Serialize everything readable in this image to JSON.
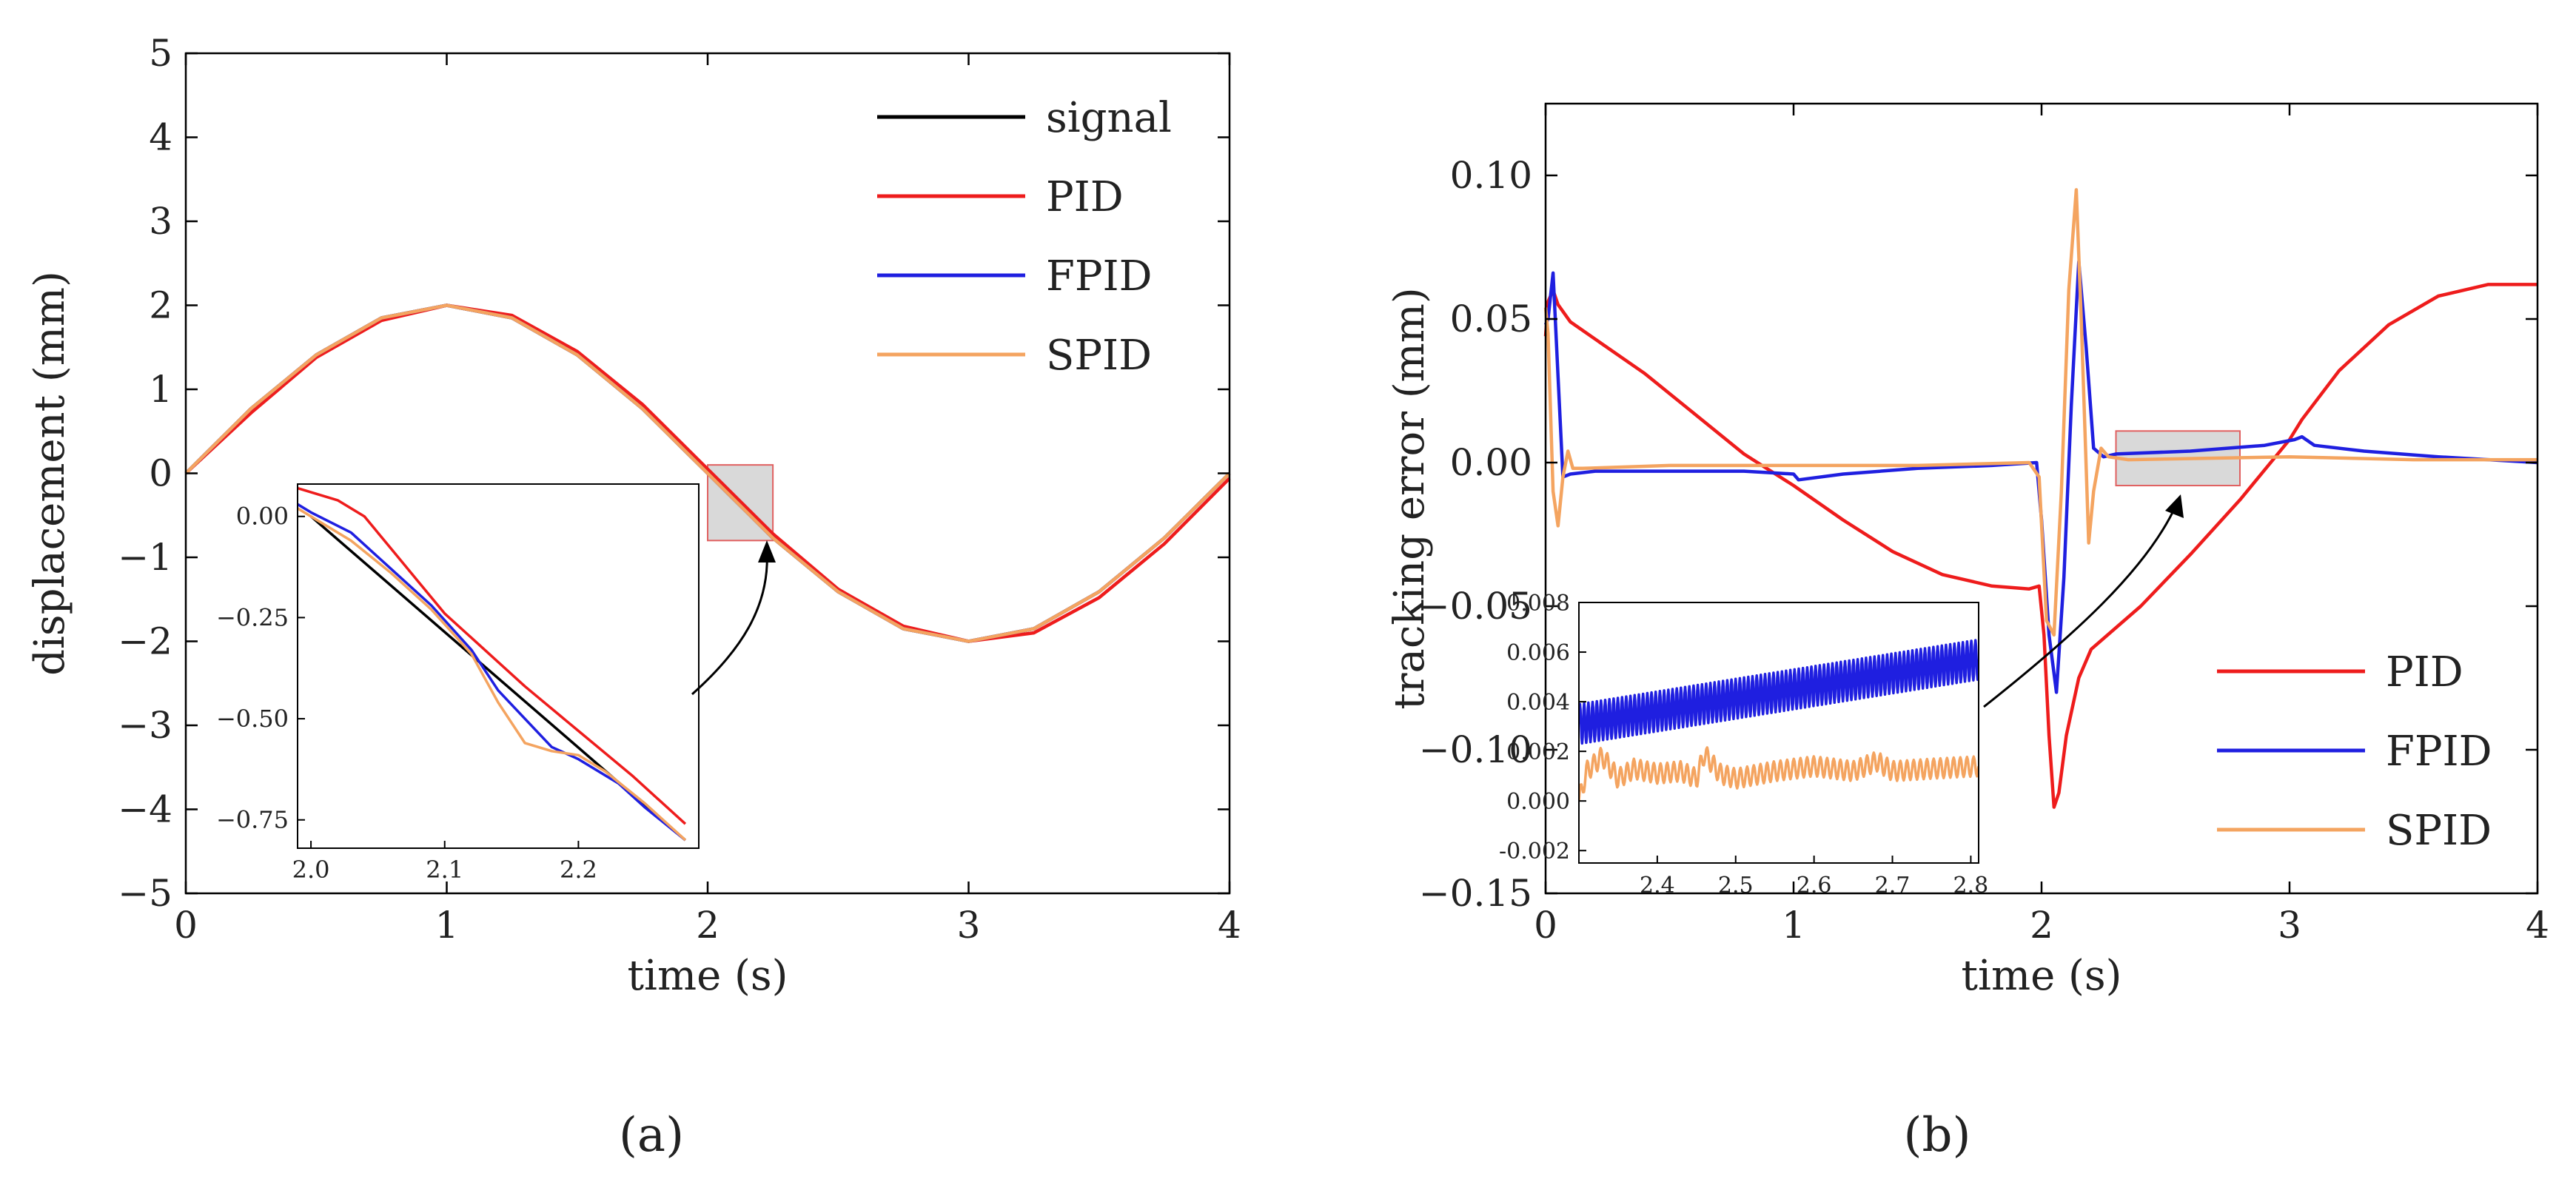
{
  "panels": {
    "a": {
      "label": "(a)"
    },
    "b": {
      "label": "(b)"
    }
  },
  "colors": {
    "signal": "#000000",
    "PID": "#ee1c1c",
    "FPID": "#1f1fe0",
    "SPID": "#f4a460",
    "zoom_box_fill": "#d9d9d9",
    "zoom_box_stroke": "#e06060"
  },
  "chart_data": [
    {
      "type": "line",
      "panel": "a",
      "xlabel": "time (s)",
      "ylabel": "displacement (mm)",
      "xlim": [
        0,
        4
      ],
      "ylim": [
        -5,
        5
      ],
      "xticks": [
        0,
        1,
        2,
        3,
        4
      ],
      "yticks": [
        5,
        4,
        3,
        2,
        1,
        0,
        -1,
        -2,
        -3,
        -4,
        -5
      ],
      "ytick_labels": [
        "5",
        "4",
        "3",
        "2",
        "1",
        "0",
        "−1",
        "−2",
        "−3",
        "−4",
        "−5"
      ],
      "legend": {
        "position": "top-right",
        "entries": [
          "signal",
          "PID",
          "FPID",
          "SPID"
        ]
      },
      "series": [
        {
          "name": "signal",
          "x": [
            0,
            0.25,
            0.5,
            0.75,
            1,
            1.25,
            1.5,
            1.75,
            2,
            2.25,
            2.5,
            2.75,
            3,
            3.25,
            3.5,
            3.75,
            4
          ],
          "y": [
            0,
            0.77,
            1.41,
            1.85,
            2,
            1.85,
            1.41,
            0.77,
            0,
            -0.77,
            -1.41,
            -1.85,
            -2,
            -1.85,
            -1.41,
            -0.77,
            0
          ]
        },
        {
          "name": "PID",
          "x": [
            0,
            0.25,
            0.5,
            0.75,
            1,
            1.25,
            1.5,
            1.75,
            2,
            2.25,
            2.5,
            2.75,
            3,
            3.25,
            3.5,
            3.75,
            4
          ],
          "y": [
            0,
            0.72,
            1.38,
            1.82,
            2,
            1.88,
            1.45,
            0.82,
            0.05,
            -0.72,
            -1.38,
            -1.82,
            -2,
            -1.9,
            -1.48,
            -0.84,
            -0.06
          ]
        },
        {
          "name": "FPID",
          "x": [
            0,
            0.25,
            0.5,
            0.75,
            1,
            1.25,
            1.5,
            1.75,
            2,
            2.25,
            2.5,
            2.75,
            3,
            3.25,
            3.5,
            3.75,
            4
          ],
          "y": [
            0,
            0.77,
            1.41,
            1.85,
            2,
            1.85,
            1.41,
            0.77,
            0,
            -0.77,
            -1.41,
            -1.85,
            -2,
            -1.85,
            -1.41,
            -0.77,
            0
          ]
        },
        {
          "name": "SPID",
          "x": [
            0,
            0.25,
            0.5,
            0.75,
            1,
            1.25,
            1.5,
            1.75,
            2,
            2.25,
            2.5,
            2.75,
            3,
            3.25,
            3.5,
            3.75,
            4
          ],
          "y": [
            0,
            0.77,
            1.41,
            1.85,
            2,
            1.85,
            1.41,
            0.77,
            0,
            -0.77,
            -1.41,
            -1.85,
            -2,
            -1.85,
            -1.41,
            -0.77,
            0
          ]
        }
      ],
      "zoom_region": {
        "xlim": [
          2.0,
          2.25
        ],
        "ylim": [
          -0.8,
          0.1
        ]
      },
      "inset": {
        "xlim": [
          1.99,
          2.29
        ],
        "ylim": [
          -0.82,
          0.08
        ],
        "xticks": [
          2.0,
          2.1,
          2.2
        ],
        "xtick_labels": [
          "2.0",
          "2.1",
          "2.2"
        ],
        "yticks": [
          0,
          -0.25,
          -0.5,
          -0.75
        ],
        "ytick_labels": [
          "0.00",
          "−0.25",
          "−0.50",
          "−0.75"
        ],
        "series": [
          {
            "name": "signal",
            "x": [
              2.0,
              2.28
            ],
            "y": [
              0,
              -0.8
            ]
          },
          {
            "name": "PID",
            "x": [
              1.99,
              2.02,
              2.04,
              2.06,
              2.08,
              2.1,
              2.13,
              2.16,
              2.2,
              2.24,
              2.28
            ],
            "y": [
              0.07,
              0.04,
              0.0,
              -0.08,
              -0.16,
              -0.24,
              -0.33,
              -0.42,
              -0.53,
              -0.64,
              -0.76
            ]
          },
          {
            "name": "FPID",
            "x": [
              1.99,
              2.0,
              2.03,
              2.06,
              2.09,
              2.12,
              2.14,
              2.16,
              2.18,
              2.2,
              2.23,
              2.25,
              2.28
            ],
            "y": [
              0.03,
              0.01,
              -0.04,
              -0.13,
              -0.22,
              -0.33,
              -0.43,
              -0.5,
              -0.57,
              -0.6,
              -0.66,
              -0.72,
              -0.8
            ]
          },
          {
            "name": "SPID",
            "x": [
              1.99,
              2.0,
              2.03,
              2.06,
              2.09,
              2.12,
              2.14,
              2.16,
              2.18,
              2.2,
              2.22,
              2.25,
              2.28
            ],
            "y": [
              0.02,
              0.0,
              -0.06,
              -0.14,
              -0.23,
              -0.34,
              -0.46,
              -0.56,
              -0.58,
              -0.59,
              -0.63,
              -0.71,
              -0.8
            ]
          }
        ]
      }
    },
    {
      "type": "line",
      "panel": "b",
      "xlabel": "time (s)",
      "ylabel": "tracking error (mm)",
      "xlim": [
        0,
        4
      ],
      "ylim": [
        -0.15,
        0.125
      ],
      "xticks": [
        0,
        1,
        2,
        3,
        4
      ],
      "yticks": [
        0.1,
        0.05,
        0.0,
        -0.05,
        -0.1,
        -0.15
      ],
      "ytick_labels": [
        "0.10",
        "0.05",
        "0.00",
        "−0.05",
        "−0.10",
        "−0.15"
      ],
      "legend": {
        "position": "bottom-right",
        "entries": [
          "PID",
          "FPID",
          "SPID"
        ]
      },
      "series": [
        {
          "name": "PID",
          "x": [
            0,
            0.01,
            0.03,
            0.05,
            0.1,
            0.2,
            0.4,
            0.6,
            0.8,
            1.0,
            1.2,
            1.4,
            1.6,
            1.8,
            1.95,
            1.99,
            2.01,
            2.03,
            2.05,
            2.07,
            2.1,
            2.15,
            2.2,
            2.4,
            2.6,
            2.8,
            3.0,
            3.05,
            3.2,
            3.4,
            3.6,
            3.8,
            3.9,
            4.0
          ],
          "y": [
            0.044,
            0.056,
            0.06,
            0.055,
            0.049,
            0.043,
            0.031,
            0.017,
            0.003,
            -0.008,
            -0.02,
            -0.031,
            -0.039,
            -0.043,
            -0.044,
            -0.043,
            -0.06,
            -0.095,
            -0.12,
            -0.115,
            -0.095,
            -0.075,
            -0.065,
            -0.05,
            -0.032,
            -0.013,
            0.008,
            0.015,
            0.032,
            0.048,
            0.058,
            0.062,
            0.062,
            0.062
          ]
        },
        {
          "name": "FPID",
          "x": [
            0,
            0.01,
            0.03,
            0.05,
            0.07,
            0.1,
            0.2,
            0.5,
            0.8,
            1.0,
            1.02,
            1.2,
            1.5,
            1.8,
            1.98,
            2.0,
            2.03,
            2.06,
            2.09,
            2.12,
            2.15,
            2.18,
            2.21,
            2.25,
            2.3,
            2.6,
            2.9,
            3.02,
            3.05,
            3.1,
            3.3,
            3.6,
            4.0
          ],
          "y": [
            0.048,
            0.05,
            0.066,
            0.03,
            -0.005,
            -0.004,
            -0.003,
            -0.003,
            -0.003,
            -0.004,
            -0.006,
            -0.004,
            -0.002,
            -0.001,
            0.0,
            -0.02,
            -0.06,
            -0.08,
            -0.04,
            0.02,
            0.07,
            0.04,
            0.005,
            0.002,
            0.003,
            0.004,
            0.006,
            0.008,
            0.009,
            0.006,
            0.004,
            0.002,
            0.0
          ]
        },
        {
          "name": "SPID",
          "x": [
            0,
            0.01,
            0.03,
            0.05,
            0.07,
            0.09,
            0.11,
            0.15,
            0.5,
            1.0,
            1.5,
            1.95,
            1.99,
            2.02,
            2.05,
            2.08,
            2.11,
            2.14,
            2.16,
            2.19,
            2.21,
            2.24,
            2.27,
            2.35,
            3.0,
            3.5,
            4.0
          ],
          "y": [
            0.054,
            0.045,
            -0.01,
            -0.022,
            -0.005,
            0.004,
            -0.002,
            -0.002,
            -0.001,
            -0.001,
            -0.001,
            0.0,
            -0.005,
            -0.055,
            -0.06,
            -0.01,
            0.06,
            0.095,
            0.05,
            -0.028,
            -0.01,
            0.005,
            0.002,
            0.001,
            0.002,
            0.001,
            0.001
          ]
        }
      ],
      "zoom_region": {
        "xlim": [
          2.3,
          2.8
        ],
        "ylim": [
          -0.008,
          0.011
        ]
      },
      "inset": {
        "xlim": [
          2.3,
          2.81
        ],
        "ylim": [
          -0.0025,
          0.008
        ],
        "xticks": [
          2.4,
          2.5,
          2.6,
          2.7,
          2.8
        ],
        "xtick_labels": [
          "2.4",
          "2.5",
          "2.6",
          "2.7",
          "2.8"
        ],
        "yticks": [
          0.008,
          0.006,
          0.004,
          0.002,
          0.0,
          -0.002
        ],
        "ytick_labels": [
          "0.008",
          "0.006",
          "0.004",
          "0.002",
          "0.000",
          "-0.002"
        ],
        "series": [
          {
            "name": "FPID",
            "x": [
              2.3,
              2.81
            ],
            "y": [
              0.0031,
              0.0057
            ],
            "ripple": 0.0008,
            "cycles": 95
          },
          {
            "name": "SPID",
            "x": [
              2.3,
              2.31,
              2.33,
              2.35,
              2.37,
              2.4,
              2.43,
              2.45,
              2.46,
              2.48,
              2.5,
              2.55,
              2.6,
              2.65,
              2.68,
              2.7,
              2.75,
              2.81
            ],
            "y": [
              0.0,
              0.0012,
              0.0018,
              0.0009,
              0.0013,
              0.0011,
              0.0012,
              0.0009,
              0.0019,
              0.0011,
              0.0009,
              0.0012,
              0.0014,
              0.0012,
              0.0016,
              0.0012,
              0.0013,
              0.0014
            ],
            "ripple": 0.0004,
            "cycles": 60
          }
        ]
      }
    }
  ]
}
